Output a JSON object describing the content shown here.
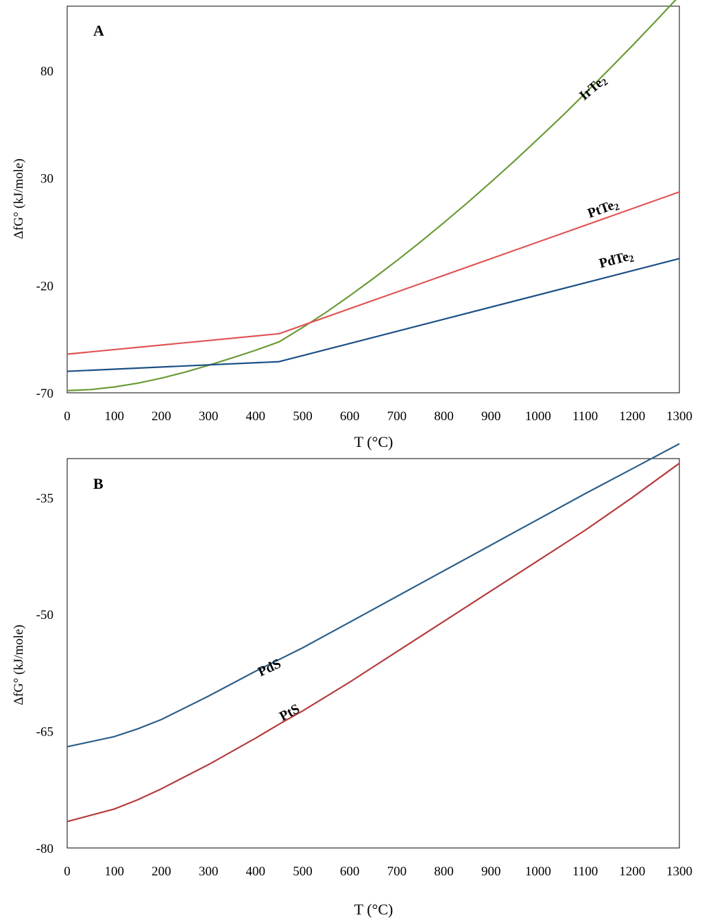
{
  "chart_data": [
    {
      "type": "line",
      "panel_label": "A",
      "xlabel": "T (°C)",
      "ylabel": "ΔfG° (kJ/mole)",
      "xlim": [
        0,
        1300
      ],
      "ylim": [
        -70,
        110
      ],
      "x_ticks": [
        "0",
        "100",
        "200",
        "300",
        "400",
        "500",
        "600",
        "700",
        "800",
        "900",
        "1000",
        "1100",
        "1200",
        "1300"
      ],
      "y_ticks": [
        "80",
        "30",
        "-20",
        "-70"
      ],
      "y_tick_values": [
        80,
        30,
        -20,
        -70
      ],
      "series": [
        {
          "name": "IrTe",
          "subscript": "2",
          "color": "#6a9a35",
          "x": [
            0,
            50,
            100,
            150,
            200,
            250,
            300,
            350,
            400,
            450,
            500,
            550,
            600,
            650,
            700,
            750,
            800,
            850,
            900,
            950,
            1000,
            1050,
            1100,
            1150,
            1200,
            1250,
            1300
          ],
          "y": [
            -69,
            -68.5,
            -67.3,
            -65.5,
            -63.2,
            -60.4,
            -57.2,
            -53.8,
            -50.2,
            -46.3,
            -39.6,
            -32.5,
            -24.8,
            -16.8,
            -8.5,
            0.2,
            9.2,
            18.5,
            28.1,
            38,
            48.2,
            58.6,
            69.4,
            80.4,
            91.6,
            103.1,
            114.8
          ]
        },
        {
          "name": "PtTe",
          "subscript": "2",
          "color": "#e05454",
          "x": [
            0,
            450,
            1300
          ],
          "y": [
            -52,
            -42.5,
            23.5
          ]
        },
        {
          "name": "PdTe",
          "subscript": "2",
          "color": "#1a4f85",
          "x": [
            0,
            450,
            1300
          ],
          "y": [
            -60,
            -55.5,
            -7.5
          ]
        }
      ]
    },
    {
      "type": "line",
      "panel_label": "B",
      "xlabel": "T (°C)",
      "ylabel": "ΔfG° (kJ/mole)",
      "xlim": [
        0,
        1300
      ],
      "ylim": [
        -80,
        -30
      ],
      "x_ticks": [
        "0",
        "100",
        "200",
        "300",
        "400",
        "500",
        "600",
        "700",
        "800",
        "900",
        "1000",
        "1100",
        "1200",
        "1300"
      ],
      "y_ticks": [
        "-35",
        "-50",
        "-65",
        "-80"
      ],
      "y_tick_values": [
        -35,
        -50,
        -65,
        -80
      ],
      "series": [
        {
          "name": "PdS",
          "subscript": "",
          "color": "#2c5f8a",
          "x": [
            0,
            100,
            150,
            200,
            300,
            400,
            450,
            500,
            600,
            700,
            800,
            900,
            1000,
            1100,
            1200,
            1300
          ],
          "y": [
            -67,
            -65.7,
            -64.7,
            -63.5,
            -60.5,
            -57.3,
            -55.8,
            -54.3,
            -51,
            -47.7,
            -44.4,
            -41.1,
            -37.8,
            -34.5,
            -31.3,
            -28.1
          ]
        },
        {
          "name": "PtS",
          "subscript": "",
          "color": "#b53a3a",
          "x": [
            0,
            100,
            150,
            200,
            300,
            400,
            450,
            500,
            600,
            700,
            800,
            900,
            1000,
            1100,
            1200,
            1300
          ],
          "y": [
            -76.6,
            -75,
            -73.8,
            -72.4,
            -69.3,
            -65.9,
            -64.1,
            -62.4,
            -58.7,
            -54.8,
            -50.9,
            -47,
            -43.1,
            -39.2,
            -35,
            -30.6
          ]
        }
      ]
    }
  ]
}
